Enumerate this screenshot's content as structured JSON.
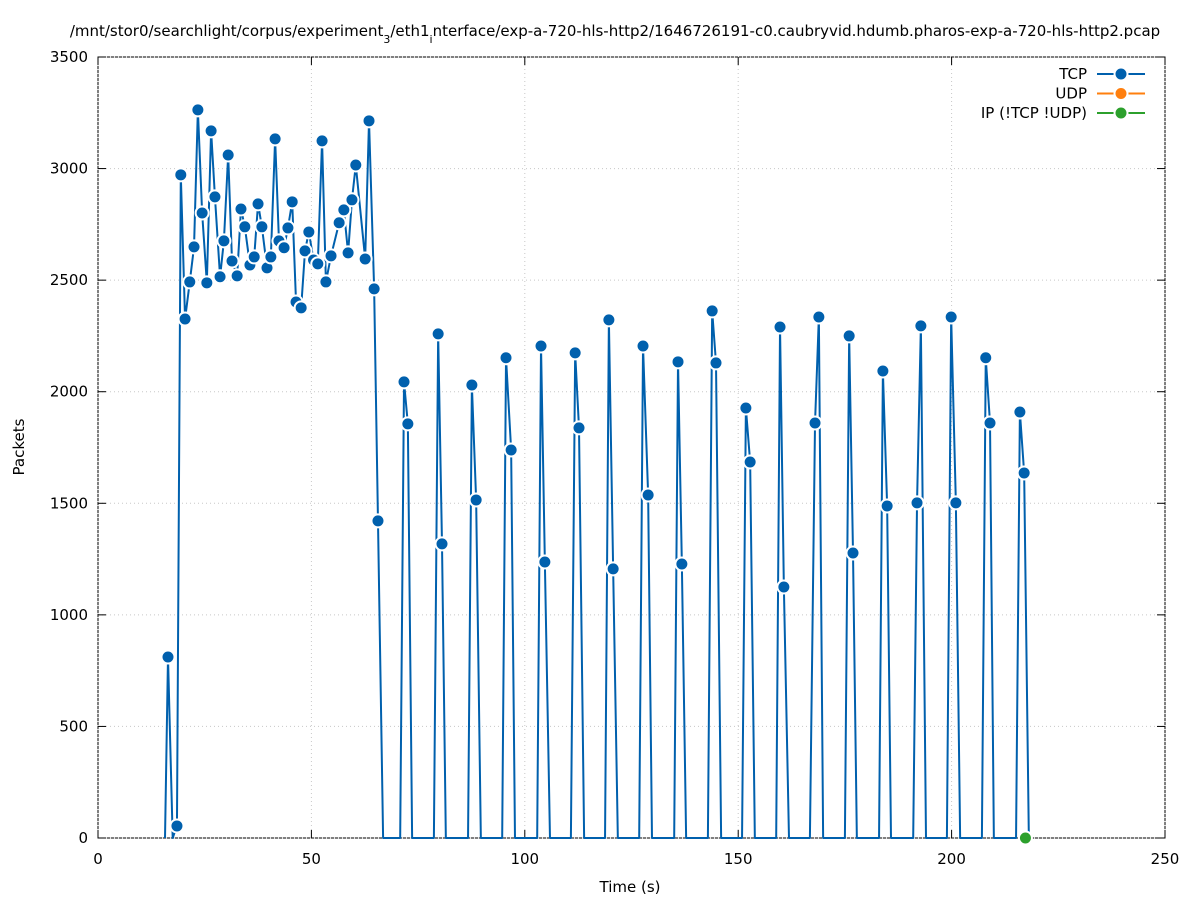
{
  "chart_data": {
    "type": "line",
    "title": [
      "/mnt/stor0/searchlight/corpus/experiment",
      "3",
      "/eth1",
      "i",
      "nterface/exp-a-720-hls-http2/1646726191-c0.caubryvid.hdumb.pharos-exp-a-720-hls-http2.pcap"
    ],
    "x_label": "Time (s)",
    "y_label": "Packets",
    "xlim": [
      0,
      250
    ],
    "xticks": [
      0,
      50,
      100,
      150,
      200,
      250
    ],
    "ylim": [
      0,
      3500
    ],
    "yticks": [
      0,
      500,
      1000,
      1500,
      2000,
      2500,
      3000,
      3500
    ],
    "grid": true,
    "legend": "top-right",
    "series": [
      {
        "name": "TCP",
        "color": "#0060ad",
        "x": [
          15.7,
          16.4,
          17.5,
          18.5,
          19.4,
          20.4,
          21.5,
          22.5,
          23.4,
          24.4,
          25.5,
          26.5,
          27.4,
          28.6,
          29.5,
          30.5,
          31.4,
          32.6,
          33.5,
          34.4,
          35.6,
          36.6,
          37.5,
          38.4,
          39.6,
          40.5,
          41.5,
          42.4,
          43.6,
          44.5,
          45.5,
          46.4,
          47.6,
          48.5,
          49.4,
          50.5,
          51.5,
          52.5,
          53.4,
          54.6,
          56.5,
          57.6,
          58.6,
          59.5,
          60.4,
          62.6,
          63.5,
          64.7,
          65.6,
          66.8,
          70.8,
          71.7,
          72.6,
          73.6,
          78.7,
          79.7,
          80.6,
          81.5,
          86.7,
          87.6,
          88.6,
          89.7,
          94.7,
          95.6,
          96.8,
          97.7,
          102.9,
          103.8,
          104.7,
          105.9,
          110.8,
          111.8,
          112.7,
          113.9,
          118.8,
          119.7,
          120.7,
          121.8,
          126.8,
          127.7,
          128.9,
          129.8,
          135,
          135.9,
          136.8,
          137.8,
          142.9,
          143.9,
          144.8,
          146,
          150.9,
          151.8,
          152.8,
          153.9,
          158.9,
          159.8,
          160.7,
          161.9,
          166.8,
          168,
          168.9,
          169.9,
          175,
          176,
          176.9,
          177.8,
          183,
          183.9,
          184.9,
          185.8,
          191,
          191.9,
          192.8,
          194,
          198.9,
          199.9,
          201,
          202,
          207.1,
          208,
          209,
          209.9,
          215.1,
          216,
          217,
          218.1
        ],
        "values": [
          0,
          811,
          0,
          54,
          2972,
          2326,
          2492,
          2649,
          3263,
          2801,
          2488,
          3169,
          2873,
          2515,
          2676,
          3061,
          2586,
          2519,
          2819,
          2739,
          2568,
          2604,
          2842,
          2739,
          2555,
          2604,
          3133,
          2676,
          2645,
          2734,
          2851,
          2402,
          2376,
          2631,
          2716,
          2590,
          2573,
          3124,
          2492,
          2609,
          2757,
          2815,
          2622,
          2860,
          3016,
          2595,
          3214,
          2461,
          1421,
          0,
          0,
          2044,
          1856,
          0,
          0,
          2259,
          1318,
          0,
          0,
          2030,
          1515,
          0,
          0,
          2152,
          1739,
          0,
          0,
          2205,
          1237,
          0,
          0,
          2174,
          1838,
          0,
          0,
          2322,
          1206,
          0,
          0,
          2205,
          1537,
          0,
          0,
          2134,
          1228,
          0,
          0,
          2362,
          2129,
          0,
          0,
          1927,
          1685,
          0,
          0,
          2290,
          1125,
          0,
          0,
          1860,
          2335,
          0,
          0,
          2250,
          1277,
          0,
          0,
          2093,
          1488,
          0,
          0,
          1502,
          2295,
          0,
          0,
          2335,
          1502,
          0,
          0,
          2152,
          1860,
          0,
          0,
          1909,
          1636,
          0
        ]
      },
      {
        "name": "UDP",
        "color": "#ff7f0e",
        "x": [],
        "values": []
      },
      {
        "name": "IP (!TCP  !UDP)",
        "color": "#2ca02c",
        "x": [
          217.3
        ],
        "values": [
          0
        ]
      }
    ]
  }
}
